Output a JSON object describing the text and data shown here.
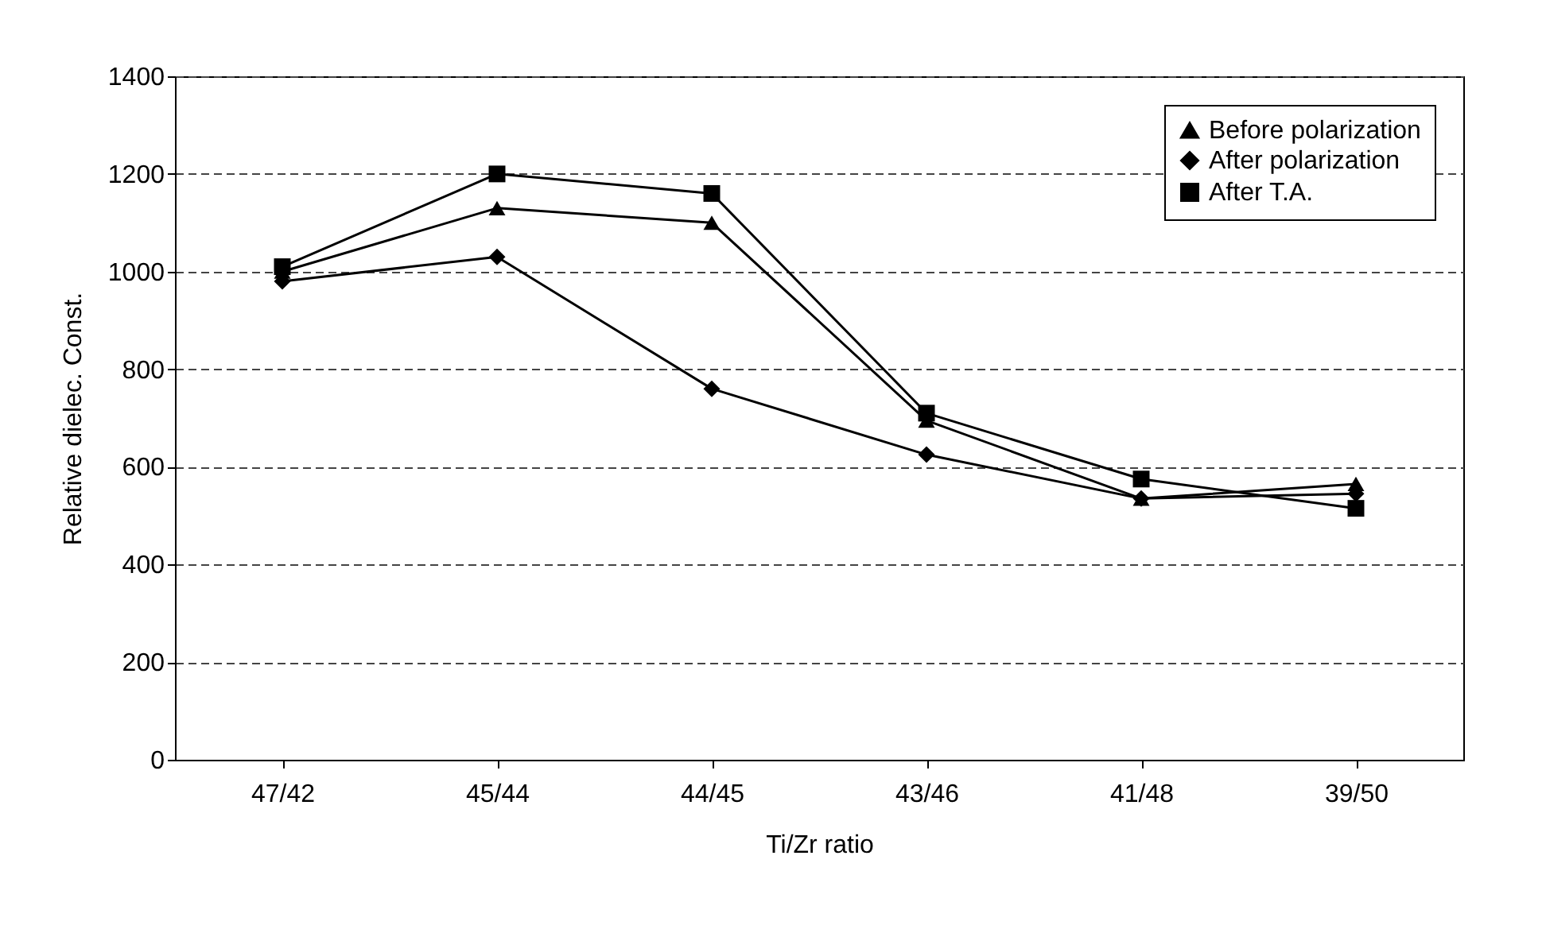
{
  "chart_data": {
    "type": "line",
    "xlabel": "Ti/Zr ratio",
    "ylabel": "Relative dielec. Const.",
    "categories": [
      "47/42",
      "45/44",
      "44/45",
      "43/46",
      "41/48",
      "39/50"
    ],
    "ylim": [
      0,
      1400
    ],
    "yticks": [
      0,
      200,
      400,
      600,
      800,
      1000,
      1200,
      1400
    ],
    "grid": "y",
    "legend": "top right",
    "line_style": "solid",
    "series": [
      {
        "name": "Before polarization",
        "color": "#000000",
        "marker": "triangle",
        "values": [
          1000,
          1130,
          1100,
          695,
          535,
          565
        ]
      },
      {
        "name": "After polarization",
        "color": "#000000",
        "marker": "diamond",
        "values": [
          980,
          1030,
          760,
          625,
          535,
          545
        ]
      },
      {
        "name": "After T.A.",
        "color": "#000000",
        "marker": "square",
        "values": [
          1010,
          1200,
          1160,
          710,
          575,
          515
        ]
      }
    ]
  }
}
